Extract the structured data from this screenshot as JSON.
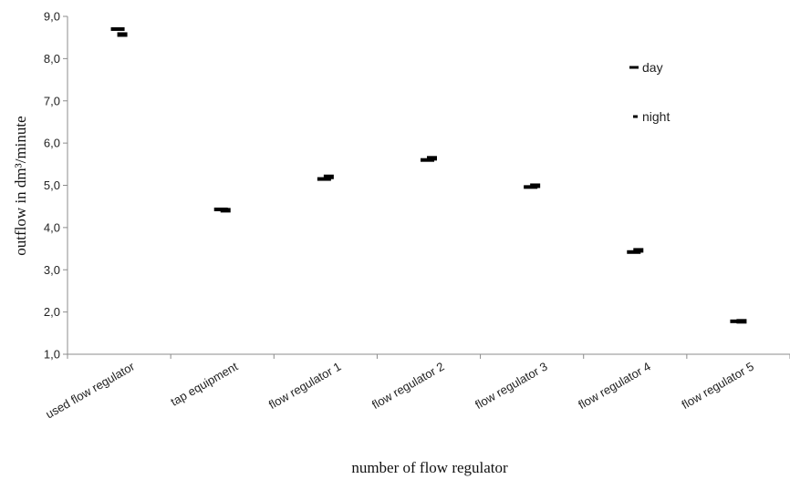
{
  "chart_data": {
    "type": "scatter",
    "title": "",
    "xlabel": "number of flow regulator",
    "ylabel": "outflow in dm³/minute",
    "categories": [
      "used flow regulator",
      "tap equipment",
      "flow regulator 1",
      "flow regulator 2",
      "flow regulator 3",
      "flow regulator 4",
      "flow regulator 5"
    ],
    "ylim": [
      1.0,
      9.0
    ],
    "yticks": [
      "1,0",
      "2,0",
      "3,0",
      "4,0",
      "5,0",
      "6,0",
      "7,0",
      "8,0",
      "9,0"
    ],
    "grid": false,
    "legend_position": "right",
    "series": [
      {
        "name": "day",
        "values": [
          8.7,
          4.43,
          5.15,
          5.6,
          4.96,
          3.42,
          1.78
        ],
        "color": "#000000"
      },
      {
        "name": "night",
        "values": [
          8.57,
          4.41,
          5.2,
          5.64,
          4.99,
          3.46,
          1.78
        ],
        "color": "#000000"
      }
    ]
  }
}
